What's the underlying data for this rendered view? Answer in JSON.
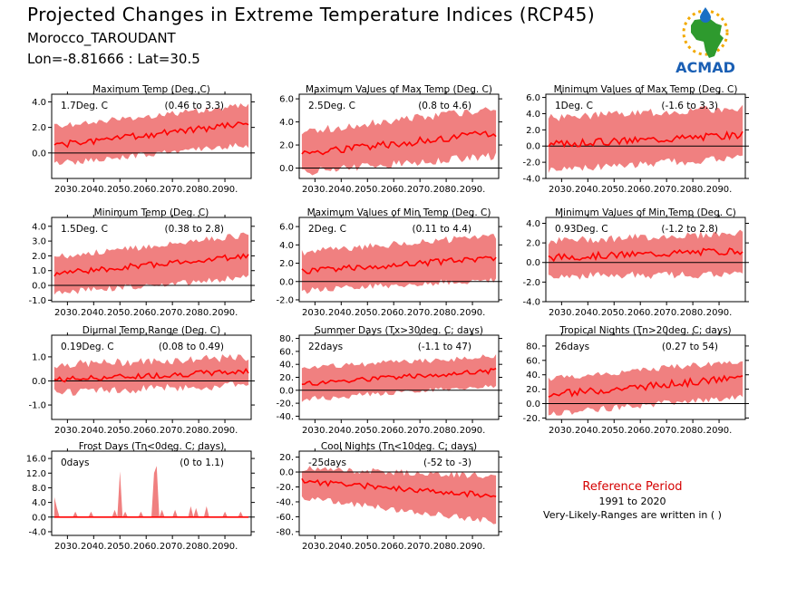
{
  "header": {
    "title": "Projected Changes in Extreme Temperature Indices (RCP45)",
    "location": "Morocco_TAROUDANT",
    "coords": "Lon=-8.81666 : Lat=30.5"
  },
  "logo": {
    "text": "ACMAD",
    "icon": "africa-map-logo-icon",
    "colors": {
      "africa": "#2e9a2e",
      "drop": "#1a6fc4",
      "sun": "#f2a900",
      "text": "#1a5fb4"
    }
  },
  "reference": {
    "title": "Reference Period",
    "period": "1991 to 2020",
    "note": "Very-Likely-Ranges are written in ( )"
  },
  "colors": {
    "band": "#f08080",
    "line": "#ff0000",
    "zero": "#000000"
  },
  "chart_data": [
    {
      "type": "area",
      "title": "Maximum Temp (Deg. C)",
      "mean_label": "1.7Deg. C",
      "range_label": "(0.46 to 3.3)",
      "ylim": [
        -2,
        4.6
      ],
      "yticks": [
        -0.0,
        2,
        4
      ],
      "ytick_labels": [
        "0.0",
        "2.0",
        "4.0"
      ],
      "xlim": [
        2024,
        2100
      ],
      "xticks": [
        2030,
        2040,
        2050,
        2060,
        2070,
        2080,
        2090
      ],
      "xtick_labels": [
        "2030.",
        "2040.",
        "2050.",
        "2060.",
        "2070.",
        "2080.",
        "2090."
      ],
      "start": [
        0.6,
        -0.6,
        1.8
      ],
      "end": [
        2.3,
        0.9,
        3.5
      ],
      "noise": 0.25,
      "spread_noise": 0.5,
      "seed": 1
    },
    {
      "type": "area",
      "title": "Maximum Values of Max Temp (Deg. C)",
      "mean_label": "2.5Deg. C",
      "range_label": "(0.8 to 4.6)",
      "ylim": [
        -0.9,
        6.4
      ],
      "yticks": [
        0,
        2,
        4,
        6
      ],
      "ytick_labels": [
        "0.0",
        "2.0",
        "4.0",
        "6.0"
      ],
      "xlim": [
        2024,
        2100
      ],
      "xticks": [
        2030,
        2040,
        2050,
        2060,
        2070,
        2080,
        2090
      ],
      "xtick_labels": [
        "2030.",
        "2040.",
        "2050.",
        "2060.",
        "2070.",
        "2080.",
        "2090."
      ],
      "start": [
        1.3,
        0.0,
        2.8
      ],
      "end": [
        3.0,
        1.4,
        4.8
      ],
      "noise": 0.35,
      "spread_noise": 0.7,
      "seed": 2
    },
    {
      "type": "area",
      "title": "Minimum Values of Max Temp (Deg. C)",
      "mean_label": "1Deg. C",
      "range_label": "(-1.6 to 3.3)",
      "ylim": [
        -4,
        6.4
      ],
      "yticks": [
        -4,
        -2,
        0,
        2,
        4,
        6
      ],
      "ytick_labels": [
        "-4.0",
        "-2.0",
        "0.0",
        "2.0",
        "4.0",
        "6.0"
      ],
      "xlim": [
        2024,
        2100
      ],
      "xticks": [
        2030,
        2040,
        2050,
        2060,
        2070,
        2080,
        2090
      ],
      "xtick_labels": [
        "2030.",
        "2040.",
        "2050.",
        "2060.",
        "2070.",
        "2080.",
        "2090."
      ],
      "start": [
        0.2,
        -2.4,
        3.0
      ],
      "end": [
        1.4,
        -1.0,
        4.2
      ],
      "noise": 0.45,
      "spread_noise": 1.0,
      "seed": 3
    },
    {
      "type": "area",
      "title": "Minimum Temp (Deg. C)",
      "mean_label": "1.5Deg. C",
      "range_label": "(0.38 to 2.8)",
      "ylim": [
        -1.1,
        4.6
      ],
      "yticks": [
        -1,
        0,
        1,
        2,
        3,
        4
      ],
      "ytick_labels": [
        "-1.0",
        "0.0",
        "1.0",
        "2.0",
        "3.0",
        "4.0"
      ],
      "xlim": [
        2024,
        2100
      ],
      "xticks": [
        2030,
        2040,
        2050,
        2060,
        2070,
        2080,
        2090
      ],
      "xtick_labels": [
        "2030.",
        "2040.",
        "2050.",
        "2060.",
        "2070.",
        "2080.",
        "2090."
      ],
      "start": [
        0.8,
        -0.3,
        1.7
      ],
      "end": [
        2.0,
        0.8,
        3.2
      ],
      "noise": 0.2,
      "spread_noise": 0.45,
      "seed": 4
    },
    {
      "type": "area",
      "title": "Maximum Values of Min Temp (Deg. C)",
      "mean_label": "2Deg. C",
      "range_label": "(0.11 to 4.4)",
      "ylim": [
        -2.2,
        7.0
      ],
      "yticks": [
        -2,
        0,
        2,
        4,
        6
      ],
      "ytick_labels": [
        "-2.0",
        "0.0",
        "2.0",
        "4.0",
        "6.0"
      ],
      "xlim": [
        2024,
        2100
      ],
      "xticks": [
        2030,
        2040,
        2050,
        2060,
        2070,
        2080,
        2090
      ],
      "xtick_labels": [
        "2030.",
        "2040.",
        "2050.",
        "2060.",
        "2070.",
        "2080.",
        "2090."
      ],
      "start": [
        1.1,
        -0.6,
        2.8
      ],
      "end": [
        2.6,
        0.6,
        4.6
      ],
      "noise": 0.35,
      "spread_noise": 0.8,
      "seed": 5
    },
    {
      "type": "area",
      "title": "Minimum Values of Min Temp (Deg. C)",
      "mean_label": "0.93Deg. C",
      "range_label": "(-1.2 to 2.8)",
      "ylim": [
        -4,
        4.6
      ],
      "yticks": [
        -4,
        -2,
        0,
        2,
        4
      ],
      "ytick_labels": [
        "-4.0",
        "-2.0",
        "0.0",
        "2.0",
        "4.0"
      ],
      "xlim": [
        2024,
        2100
      ],
      "xticks": [
        2030,
        2040,
        2050,
        2060,
        2070,
        2080,
        2090
      ],
      "xtick_labels": [
        "2030.",
        "2040.",
        "2050.",
        "2060.",
        "2070.",
        "2080.",
        "2090."
      ],
      "start": [
        0.5,
        -1.0,
        1.8
      ],
      "end": [
        1.2,
        -0.8,
        2.6
      ],
      "noise": 0.35,
      "spread_noise": 0.8,
      "seed": 6
    },
    {
      "type": "area",
      "title": "Diurnal Temp Range (Deg. C)",
      "mean_label": "0.19Deg. C",
      "range_label": "(0.08 to 0.49)",
      "ylim": [
        -1.6,
        1.9
      ],
      "yticks": [
        -1,
        0,
        1
      ],
      "ytick_labels": [
        "-1.0",
        "0.0",
        "1.0"
      ],
      "xlim": [
        2024,
        2100
      ],
      "xticks": [
        2030,
        2040,
        2050,
        2060,
        2070,
        2080,
        2090
      ],
      "xtick_labels": [
        "2030.",
        "2040.",
        "2050.",
        "2060.",
        "2070.",
        "2080.",
        "2090."
      ],
      "start": [
        0.05,
        -0.3,
        0.5
      ],
      "end": [
        0.4,
        0.0,
        0.8
      ],
      "noise": 0.12,
      "spread_noise": 0.35,
      "seed": 7
    },
    {
      "type": "area",
      "title": "Summer Days (Tx>30deg. C; days)",
      "mean_label": "22days",
      "range_label": "(-1.1 to 47)",
      "ylim": [
        -45,
        85
      ],
      "yticks": [
        -40,
        -20,
        0,
        20,
        40,
        60,
        80
      ],
      "ytick_labels": [
        "-40.",
        "-20.",
        "0.0",
        "20.",
        "40.",
        "60.",
        "80."
      ],
      "xlim": [
        2024,
        2100
      ],
      "xticks": [
        2030,
        2040,
        2050,
        2060,
        2070,
        2080,
        2090
      ],
      "xtick_labels": [
        "2030.",
        "2040.",
        "2050.",
        "2060.",
        "2070.",
        "2080.",
        "2090."
      ],
      "start": [
        10,
        -10,
        30
      ],
      "end": [
        30,
        12,
        48
      ],
      "noise": 4,
      "spread_noise": 9,
      "seed": 8
    },
    {
      "type": "area",
      "title": "Tropical Nights (Tn>20deg. C; days)",
      "mean_label": "26days",
      "range_label": "(0.27 to 54)",
      "ylim": [
        -22,
        95
      ],
      "yticks": [
        -20,
        0,
        20,
        40,
        60,
        80
      ],
      "ytick_labels": [
        "-20.",
        "0.0",
        "20.",
        "40.",
        "60.",
        "80."
      ],
      "xlim": [
        2024,
        2100
      ],
      "xticks": [
        2030,
        2040,
        2050,
        2060,
        2070,
        2080,
        2090
      ],
      "xtick_labels": [
        "2030.",
        "2040.",
        "2050.",
        "2060.",
        "2070.",
        "2080.",
        "2090."
      ],
      "start": [
        12,
        -10,
        30
      ],
      "end": [
        36,
        15,
        55
      ],
      "noise": 5,
      "spread_noise": 9,
      "seed": 9
    },
    {
      "type": "area",
      "title": "Frost Days (Tn<0deg. C; days)",
      "mean_label": "0days",
      "range_label": "(0 to 1.1)",
      "ylim": [
        -5,
        18
      ],
      "yticks": [
        -4,
        0,
        4,
        8,
        12,
        16
      ],
      "ytick_labels": [
        "-4.0",
        "0.0",
        "4.0",
        "8.0",
        "12.0",
        "16.0"
      ],
      "xlim": [
        2024,
        2100
      ],
      "xticks": [
        2030,
        2040,
        2050,
        2060,
        2070,
        2080,
        2090
      ],
      "xtick_labels": [
        "2030.",
        "2040.",
        "2050.",
        "2060.",
        "2070.",
        "2080.",
        "2090."
      ],
      "start": [
        0,
        0,
        0
      ],
      "end": [
        0,
        0,
        0
      ],
      "noise": 0,
      "spread_noise": 0,
      "spikes": [
        [
          2025,
          5.5
        ],
        [
          2026,
          2.5
        ],
        [
          2033,
          1.5
        ],
        [
          2039,
          1.5
        ],
        [
          2048,
          2
        ],
        [
          2050,
          12.5
        ],
        [
          2052,
          1.5
        ],
        [
          2058,
          1.5
        ],
        [
          2063,
          12
        ],
        [
          2064,
          14
        ],
        [
          2066,
          2
        ],
        [
          2071,
          2
        ],
        [
          2077,
          3
        ],
        [
          2079,
          2.5
        ],
        [
          2083,
          3
        ],
        [
          2090,
          1.5
        ],
        [
          2096,
          1.5
        ]
      ],
      "seed": 10
    },
    {
      "type": "area",
      "title": "Cool Nights (Tn<10deg. C; days)",
      "mean_label": "-25days",
      "range_label": "(-52 to -3)",
      "ylim": [
        -85,
        28
      ],
      "yticks": [
        -80,
        -60,
        -40,
        -20,
        0,
        20
      ],
      "ytick_labels": [
        "-80.",
        "-60.",
        "-40.",
        "-20.",
        "0.0",
        "20."
      ],
      "xlim": [
        2024,
        2100
      ],
      "xticks": [
        2030,
        2040,
        2050,
        2060,
        2070,
        2080,
        2090
      ],
      "xtick_labels": [
        "2030.",
        "2040.",
        "2050.",
        "2060.",
        "2070.",
        "2080.",
        "2090."
      ],
      "start": [
        -12,
        -30,
        0
      ],
      "end": [
        -32,
        -62,
        -10
      ],
      "noise": 4,
      "spread_noise": 9,
      "seed": 11
    }
  ]
}
